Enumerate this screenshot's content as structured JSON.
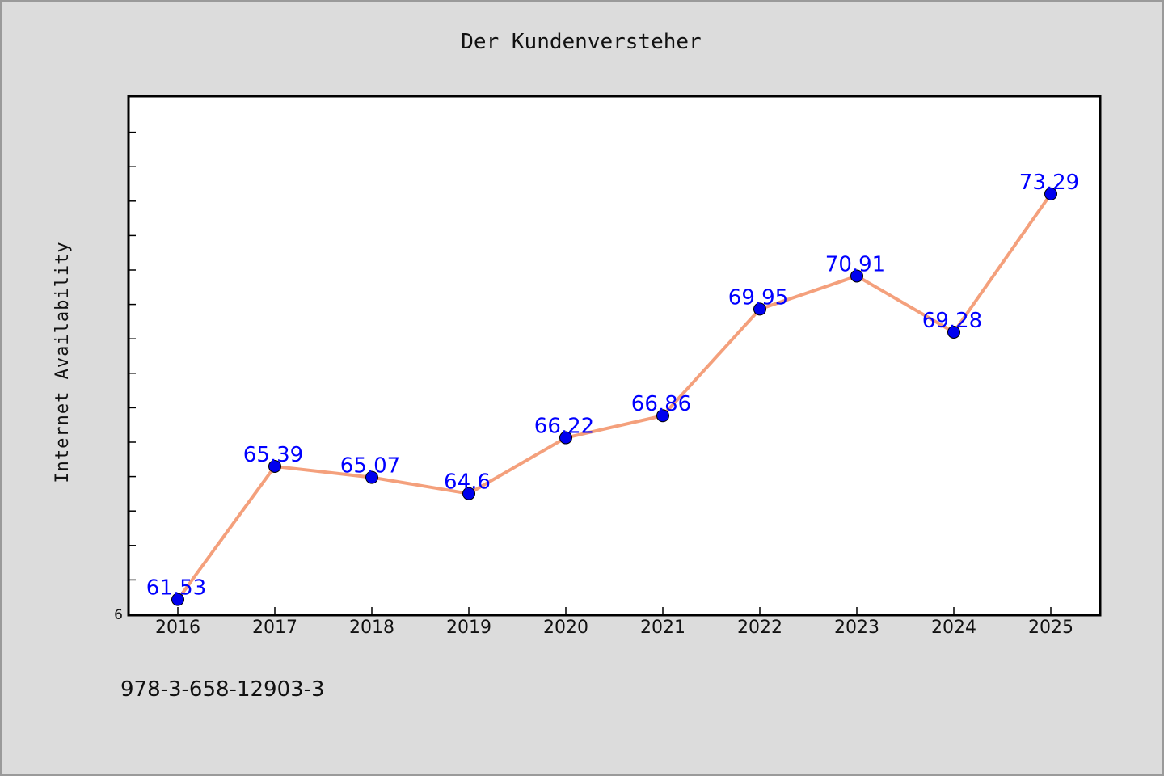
{
  "chart_data": {
    "type": "line",
    "title": "Der Kundenversteher",
    "xlabel": "",
    "ylabel": "Internet Availability",
    "x": [
      "2016",
      "2017",
      "2018",
      "2019",
      "2020",
      "2021",
      "2022",
      "2023",
      "2024",
      "2025"
    ],
    "series": [
      {
        "values": [
          61.53,
          65.39,
          65.07,
          64.6,
          66.22,
          66.86,
          69.95,
          70.91,
          69.28,
          73.29
        ],
        "data_labels": [
          "61.53",
          "65.39",
          "65.07",
          "64.6",
          "66.22",
          "66.86",
          "69.95",
          "70.91",
          "69.28",
          "73.29"
        ],
        "line_color": "#f4a07c",
        "marker_color": "#0000ee",
        "label_color": "#0000ff"
      }
    ],
    "ylim": [
      61.1,
      76.1
    ],
    "y_tick_label": "6",
    "grid": false,
    "legend": "none"
  },
  "footer": {
    "isbn": "978-3-658-12903-3"
  },
  "colors": {
    "background": "#dcdcdc",
    "plot_background": "#ffffff"
  }
}
